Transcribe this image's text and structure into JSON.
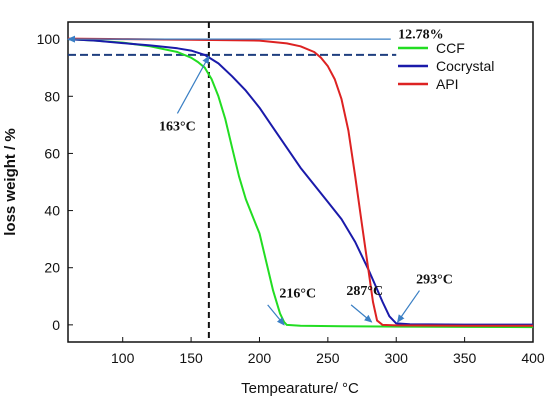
{
  "chart_data": {
    "type": "line",
    "xlabel": "Tempearature/ °C",
    "ylabel": "loss weight / %",
    "xlim": [
      60,
      400
    ],
    "ylim": [
      -6,
      106
    ],
    "xticks": [
      100,
      150,
      200,
      250,
      300,
      350,
      400
    ],
    "yticks": [
      0,
      20,
      40,
      60,
      80,
      100
    ],
    "legend_position": "top-right",
    "series": [
      {
        "name": "CCF",
        "color": "#22dd22",
        "x": [
          60,
          80,
          100,
          120,
          140,
          150,
          155,
          160,
          165,
          170,
          175,
          180,
          185,
          190,
          195,
          200,
          205,
          210,
          215,
          218,
          220,
          230,
          260,
          300,
          350,
          400
        ],
        "y": [
          100,
          99.5,
          98.8,
          97.5,
          95.5,
          93.5,
          92,
          90,
          86,
          80,
          72,
          62,
          52,
          44,
          38,
          32,
          22,
          12,
          4,
          1,
          0,
          -0.3,
          -0.5,
          -0.6,
          -0.7,
          -0.8
        ]
      },
      {
        "name": "Cocrystal",
        "color": "#1a1aaa",
        "x": [
          60,
          80,
          100,
          120,
          140,
          150,
          160,
          170,
          180,
          190,
          200,
          210,
          220,
          230,
          240,
          250,
          260,
          270,
          280,
          290,
          295,
          300,
          310,
          350,
          400
        ],
        "y": [
          100,
          99.5,
          98.6,
          97.8,
          96.8,
          96,
          94.5,
          91.5,
          87,
          82,
          76,
          69,
          62,
          55,
          49,
          43,
          37,
          29,
          19,
          8,
          3,
          0.5,
          0.2,
          0.1,
          0.1
        ]
      },
      {
        "name": "API",
        "color": "#dd2222",
        "x": [
          60,
          100,
          150,
          200,
          210,
          220,
          230,
          240,
          245,
          250,
          255,
          260,
          265,
          270,
          275,
          280,
          283,
          286,
          290,
          300,
          350,
          400
        ],
        "y": [
          100.2,
          100,
          99.8,
          99.5,
          99,
          98.5,
          97.5,
          95.5,
          93.5,
          90.5,
          86,
          79,
          68,
          52,
          35,
          18,
          8,
          1.5,
          0,
          -0.2,
          -0.3,
          -0.3
        ]
      }
    ],
    "reference_lines": {
      "vertical_x": 163,
      "horizontal_y": 94.5
    },
    "annotations": [
      {
        "text": "12.78%",
        "x": 318,
        "y": 100.3,
        "arrow_from": [
          296,
          100
        ],
        "arrow_to": [
          60,
          100
        ]
      },
      {
        "text": "163°C",
        "x": 140,
        "y": 68,
        "arrow_from": [
          140,
          74
        ],
        "arrow_to": [
          163,
          94
        ]
      },
      {
        "text": "216°C",
        "x": 228,
        "y": 9.5,
        "arrow_from": [
          206,
          7
        ],
        "arrow_to": [
          218,
          0
        ]
      },
      {
        "text": "287°C",
        "x": 277,
        "y": 10.5,
        "arrow_from": [
          267,
          7
        ],
        "arrow_to": [
          282,
          1
        ]
      },
      {
        "text": "293°C",
        "x": 328,
        "y": 14.5,
        "arrow_from": [
          317,
          12
        ],
        "arrow_to": [
          301,
          1
        ]
      }
    ]
  }
}
